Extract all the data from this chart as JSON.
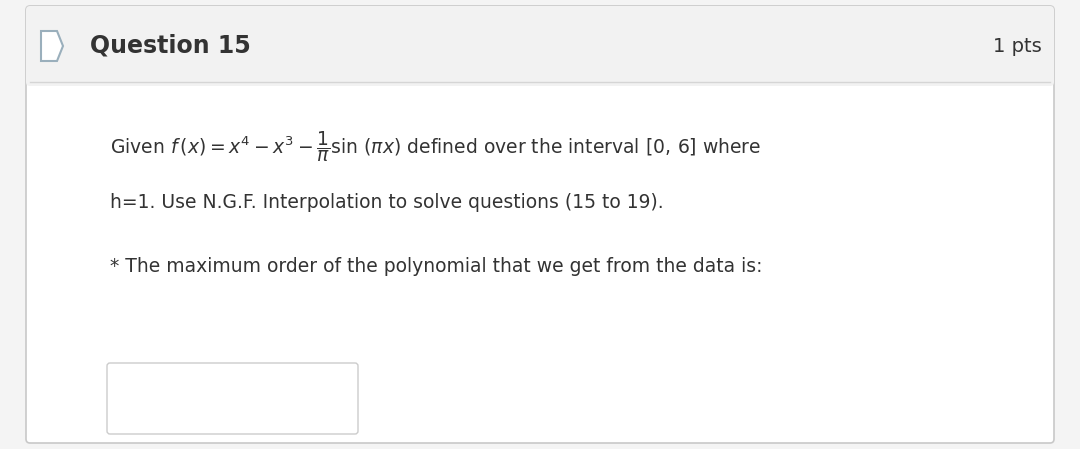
{
  "question_number": "Question 15",
  "pts": "1 pts",
  "text_line2": "h=1. Use N.G.F. Interpolation to solve questions (15 to 19).",
  "text_line3": "* The maximum order of the polynomial that we get from the data is:",
  "bg_color": "#f4f4f4",
  "card_bg_color": "#ffffff",
  "outer_border_color": "#c8c8c8",
  "header_bg_color": "#f2f2f2",
  "header_text_color": "#333333",
  "body_text_color": "#333333",
  "answer_box_color": "#ffffff",
  "answer_box_border": "#cccccc",
  "checkbox_color": "#9aafbc",
  "separator_color": "#d5d5d5"
}
